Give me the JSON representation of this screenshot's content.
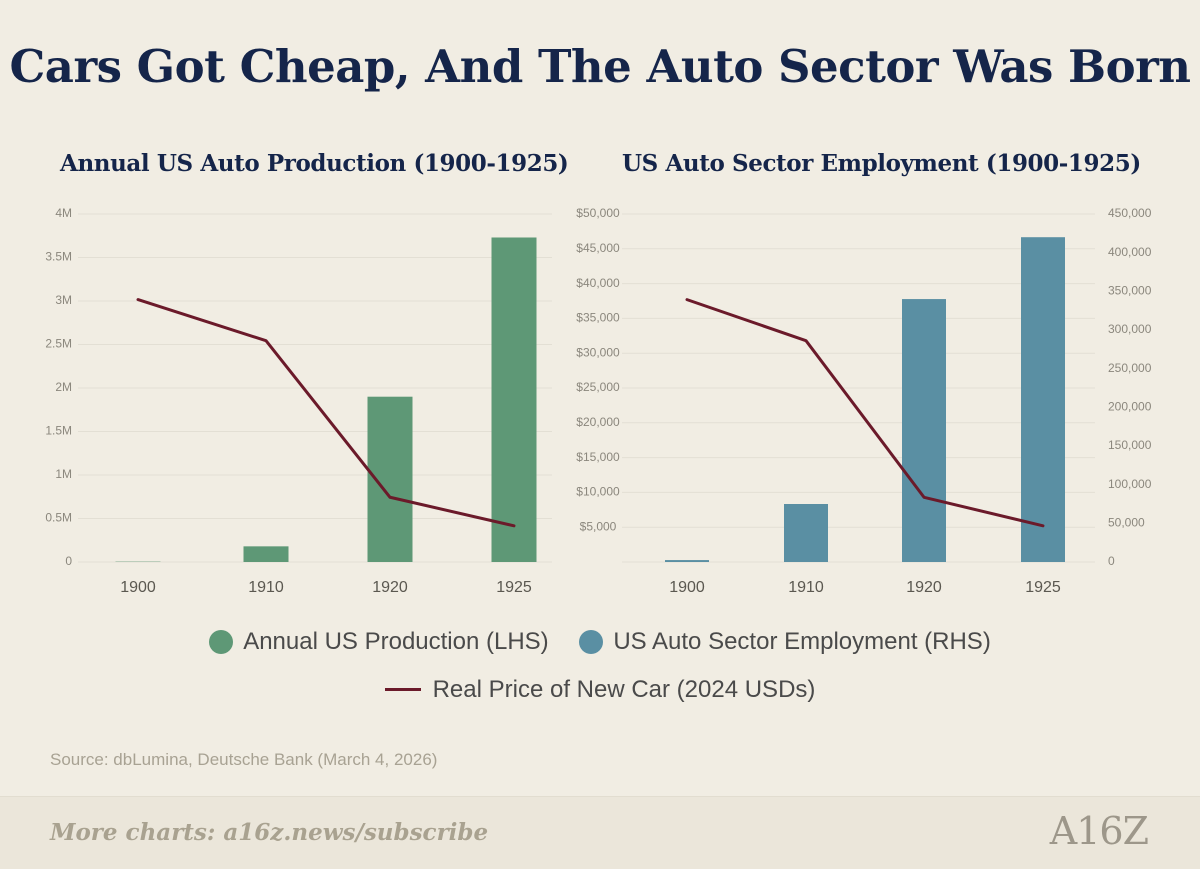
{
  "title": "Cars Got Cheap, And The Auto Sector Was Born",
  "legend": {
    "production": "Annual US Production (LHS)",
    "employment": "US Auto Sector Employment (RHS)",
    "price": "Real Price of New Car (2024 USDs)"
  },
  "source": "Source: dbLumina, Deutsche Bank (March 4, 2026)",
  "footer": {
    "cta": "More charts: a16z.news/subscribe",
    "logo": "A16Z"
  },
  "colors": {
    "production": "#5e9876",
    "employment": "#5a8fa3",
    "price": "#6b1a2a",
    "title": "#15254a"
  },
  "chart_data": [
    {
      "type": "bar",
      "title": "Annual US Auto Production (1900-1925)",
      "categories": [
        "1900",
        "1910",
        "1920",
        "1925"
      ],
      "series": [
        {
          "name": "Annual US Production (LHS)",
          "axis": "left",
          "values": [
            4000,
            180000,
            1900000,
            3730000
          ]
        },
        {
          "name": "Real Price of New Car (2024 USDs)",
          "axis": "right",
          "type": "line",
          "values": [
            37700,
            31800,
            9300,
            5200
          ]
        }
      ],
      "left_ticks": [
        "0",
        "0.5M",
        "1M",
        "1.5M",
        "2M",
        "2.5M",
        "3M",
        "3.5M",
        "4M"
      ],
      "left_ylim": [
        0,
        4000000
      ],
      "right_ticks": [
        "$5,000",
        "$10,000",
        "$15,000",
        "$20,000",
        "$25,000",
        "$30,000",
        "$35,000",
        "$40,000",
        "$45,000",
        "$50,000"
      ],
      "right_ylim": [
        0,
        50000
      ],
      "grid": true
    },
    {
      "type": "bar",
      "title": "US Auto Sector Employment (1900-1925)",
      "categories": [
        "1900",
        "1910",
        "1920",
        "1925"
      ],
      "series": [
        {
          "name": "US Auto Sector Employment (RHS)",
          "axis": "right",
          "values": [
            2500,
            75000,
            340000,
            420000
          ]
        },
        {
          "name": "Real Price of New Car (2024 USDs)",
          "axis": "hidden",
          "type": "line",
          "values": [
            37700,
            31800,
            9300,
            5200
          ]
        }
      ],
      "left_ticks": [
        "0",
        "$5,000",
        "$10,000",
        "$15,000",
        "$20,000",
        "$25,000",
        "$30,000",
        "$35,000",
        "$40,000",
        "$45,000",
        "$50,000"
      ],
      "left_ylim": [
        0,
        50000
      ],
      "right_ticks": [
        "0",
        "50,000",
        "100,000",
        "150,000",
        "200,000",
        "250,000",
        "300,000",
        "350,000",
        "400,000",
        "450,000"
      ],
      "right_ylim": [
        0,
        450000
      ],
      "grid": true
    }
  ]
}
